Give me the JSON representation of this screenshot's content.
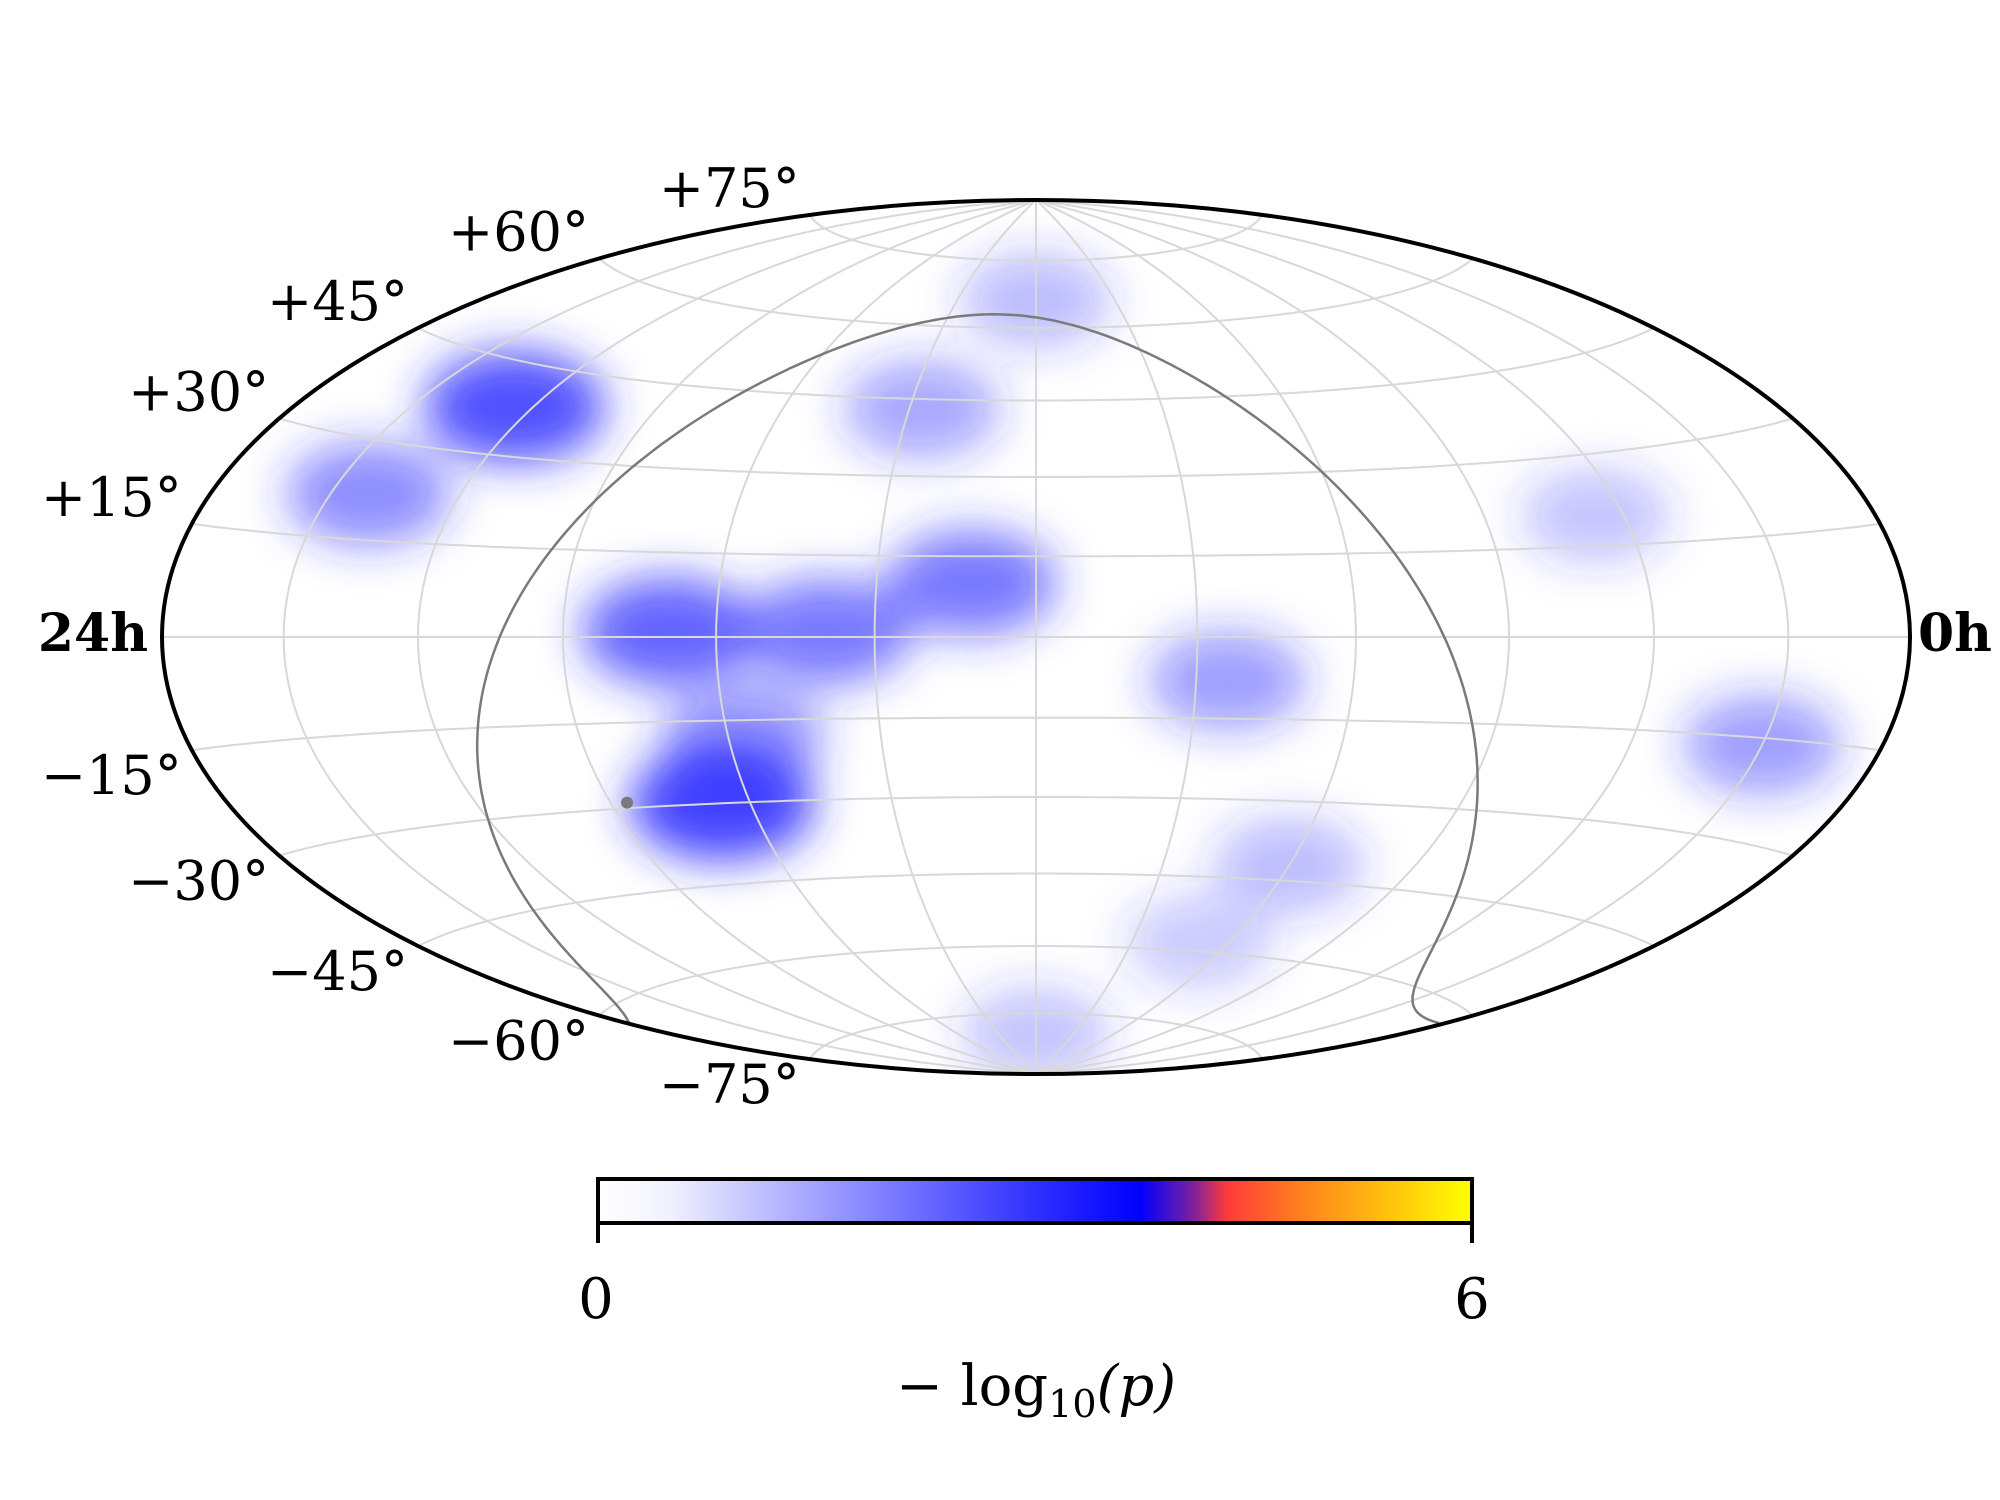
{
  "chart_data": {
    "type": "heatmap",
    "projection": "hammer-aitoff",
    "title": "",
    "ra_labels": {
      "left": "24h",
      "right": "0h"
    },
    "dec_ticks": [
      {
        "dec": 75,
        "label": "+75°"
      },
      {
        "dec": 60,
        "label": "+60°"
      },
      {
        "dec": 45,
        "label": "+45°"
      },
      {
        "dec": 30,
        "label": "+30°"
      },
      {
        "dec": 15,
        "label": "+15°"
      },
      {
        "dec": -15,
        "label": "−15°"
      },
      {
        "dec": -30,
        "label": "−30°"
      },
      {
        "dec": -45,
        "label": "−45°"
      },
      {
        "dec": -60,
        "label": "−60°"
      },
      {
        "dec": -75,
        "label": "−75°"
      }
    ],
    "grid": true,
    "grid_spacing_deg": {
      "ra": 30,
      "dec": 15
    },
    "hotspots": [
      {
        "ra_h": 20.3,
        "dec": 38,
        "value": 2.2
      },
      {
        "ra_h": 21.4,
        "dec": 22,
        "value": 1.3
      },
      {
        "ra_h": 16.6,
        "dec": 1,
        "value": 1.9
      },
      {
        "ra_h": 14.6,
        "dec": 1,
        "value": 1.6
      },
      {
        "ra_h": 12.8,
        "dec": 10,
        "value": 1.6
      },
      {
        "ra_h": 16.4,
        "dec": -30,
        "value": 2.4
      },
      {
        "ra_h": 15.8,
        "dec": -18,
        "value": 1.2
      },
      {
        "ra_h": 13.8,
        "dec": 43,
        "value": 0.9
      },
      {
        "ra_h": 12.0,
        "dec": 66,
        "value": 0.6
      },
      {
        "ra_h": 9.6,
        "dec": -8,
        "value": 1.0
      },
      {
        "ra_h": 4.4,
        "dec": 20,
        "value": 0.5
      },
      {
        "ra_h": 2.0,
        "dec": -16,
        "value": 1.0
      },
      {
        "ra_h": 8.0,
        "dec": -42,
        "value": 0.6
      },
      {
        "ra_h": 8.6,
        "dec": -58,
        "value": 0.4
      },
      {
        "ra_h": 12.0,
        "dec": -80,
        "value": 0.5
      }
    ],
    "galactic_plane_line": true,
    "galactic_center_marker": {
      "ra_h": 17.76,
      "dec": -29.0
    },
    "colorbar": {
      "min": 0,
      "max": 6,
      "tick_labels": [
        "0",
        "6"
      ],
      "label": "− log10(p)",
      "label_main": "− log",
      "label_sub": "10",
      "label_arg": "(p)",
      "colors": [
        "#ffffff",
        "#0000ff",
        "#ff3333",
        "#ffff00"
      ]
    }
  }
}
